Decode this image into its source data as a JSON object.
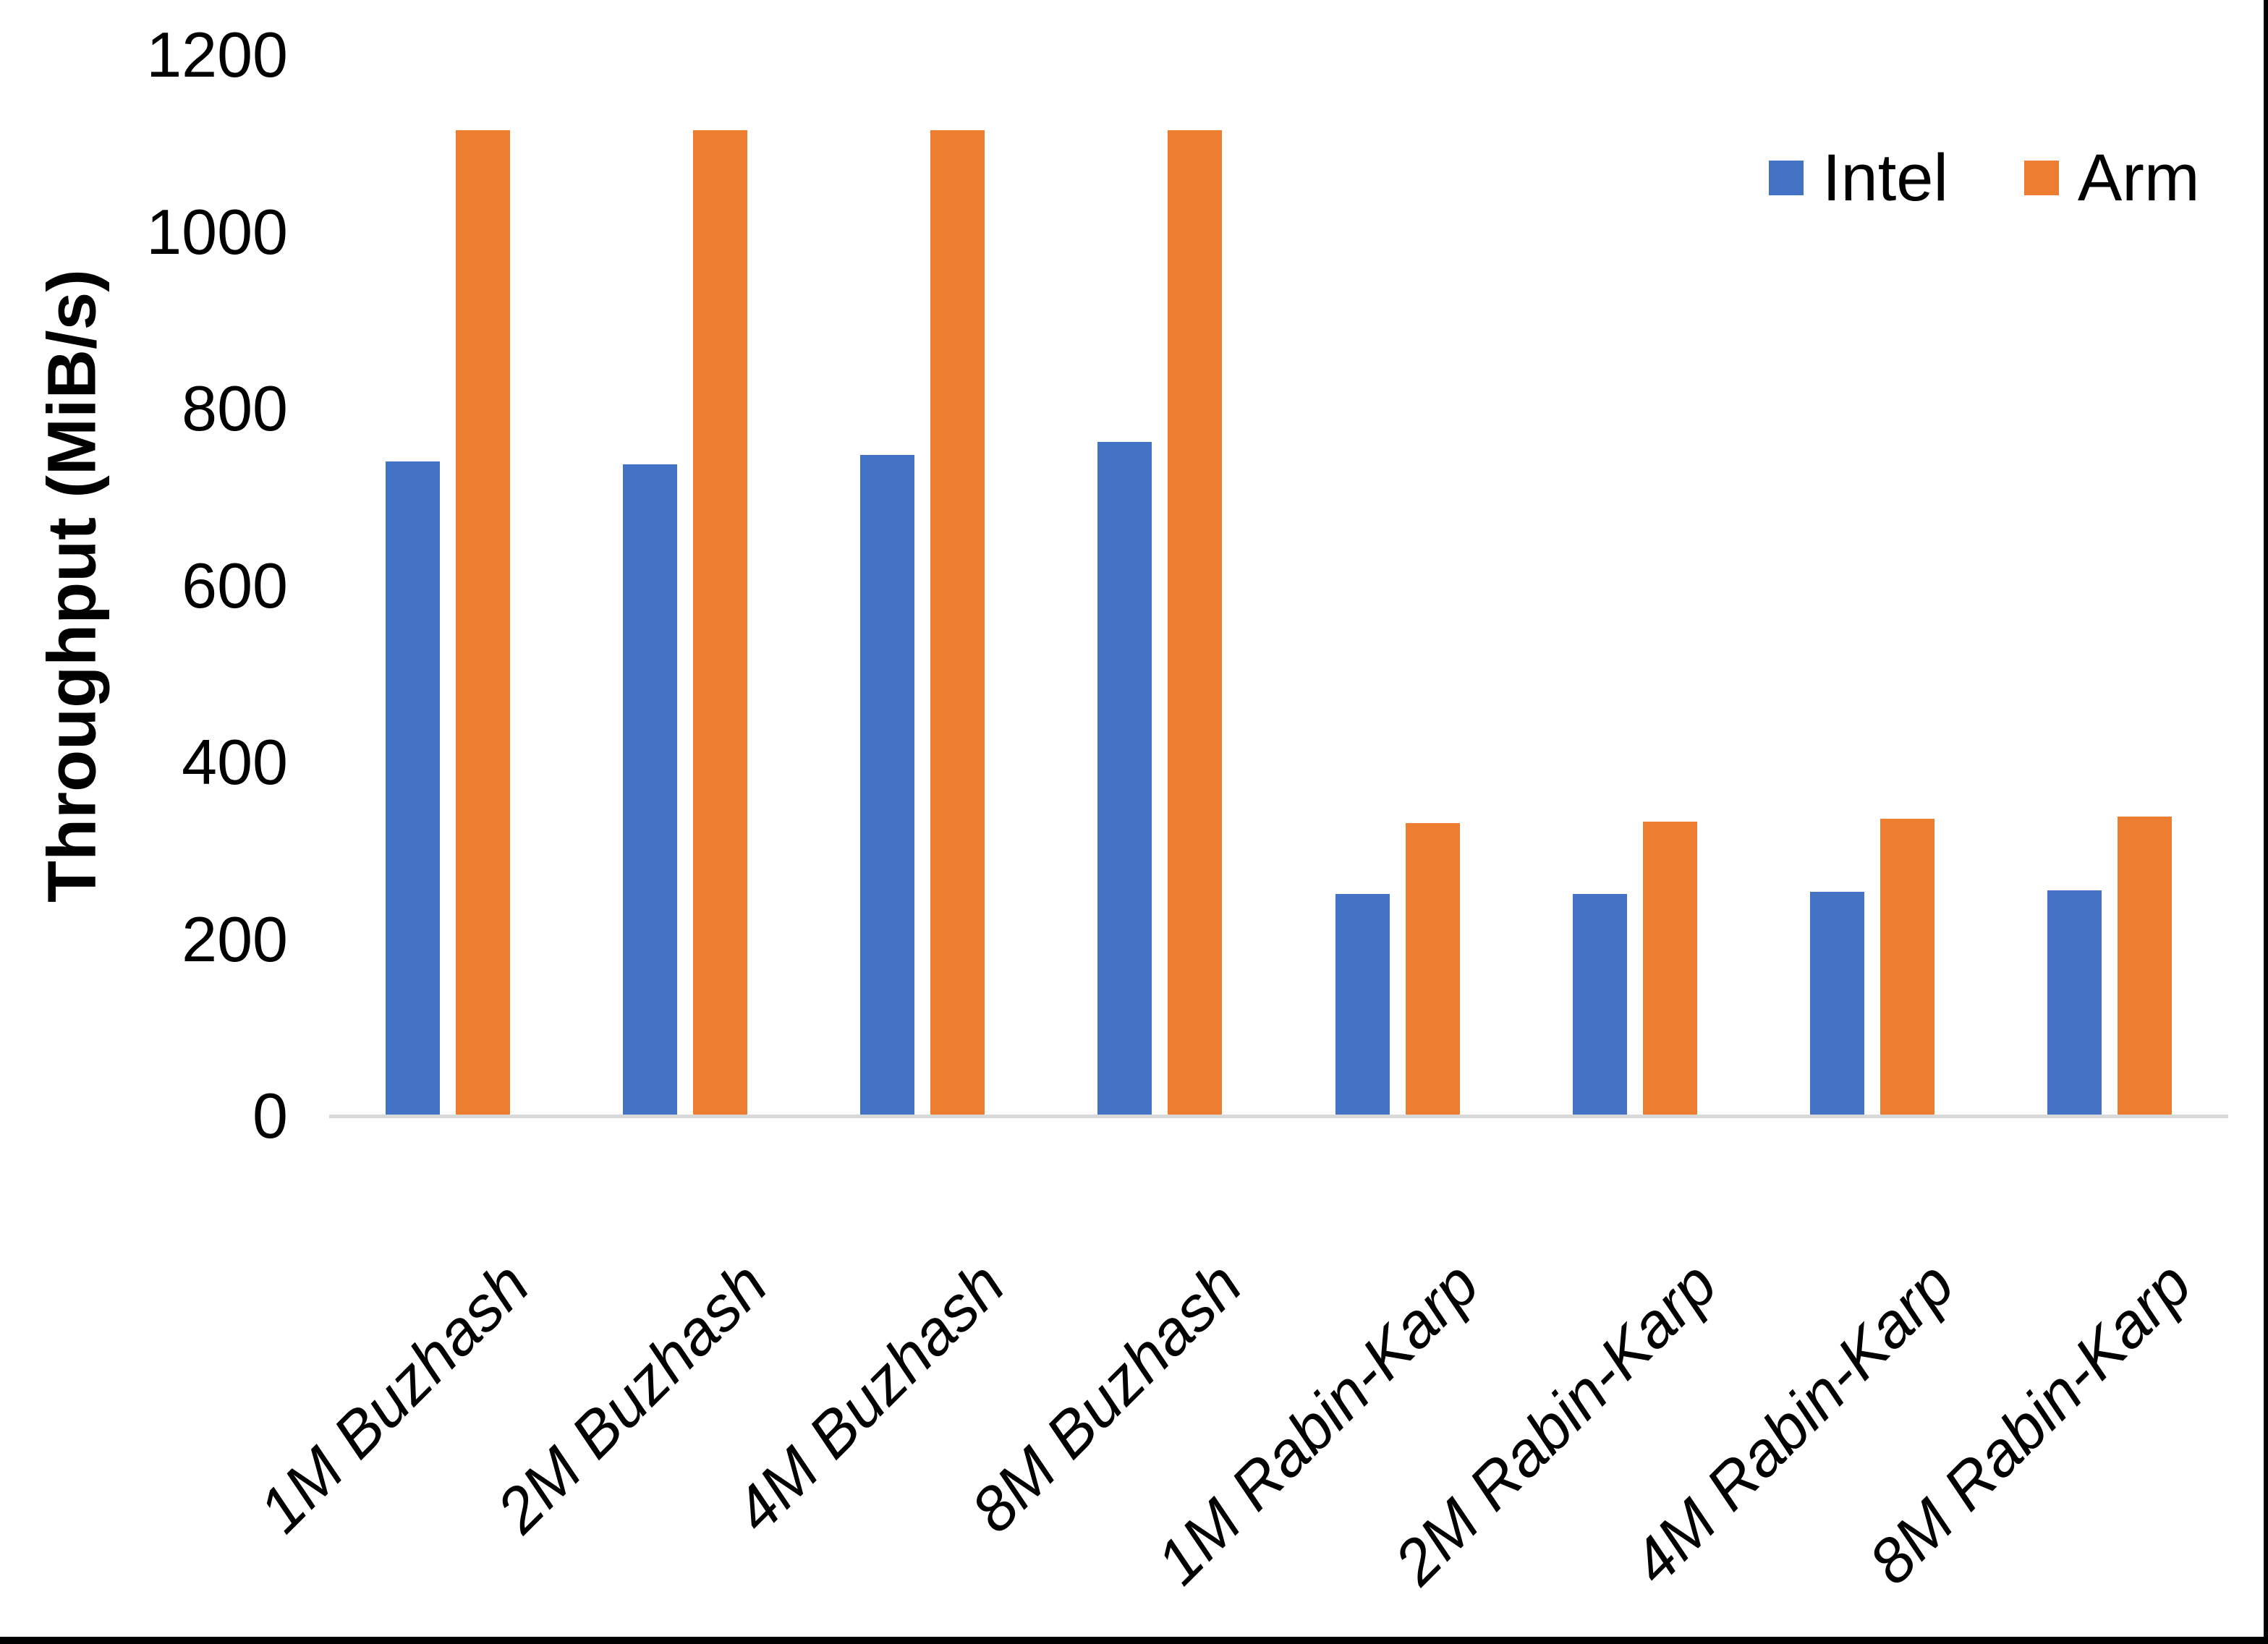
{
  "chart_data": {
    "type": "bar",
    "title": "",
    "ylabel": "Throughput (MiB/s)",
    "xlabel": "",
    "ylim": [
      0,
      1200
    ],
    "yticks": [
      0,
      200,
      400,
      600,
      800,
      1000,
      1200
    ],
    "grid": false,
    "legend_position": "top-right",
    "categories": [
      "1M Buzhash",
      "2M Buzhash",
      "4M Buzhash",
      "8M Buzhash",
      "1M Rabin-Karp",
      "2M Rabin-Karp",
      "4M Rabin-Karp",
      "8M Rabin-Karp"
    ],
    "series": [
      {
        "name": "Intel",
        "color": "#4472C4",
        "values": [
          740,
          737,
          748,
          762,
          251,
          251,
          254,
          255
        ]
      },
      {
        "name": "Arm",
        "color": "#ED7D31",
        "values": [
          1115,
          1115,
          1115,
          1115,
          331,
          333,
          336,
          339
        ]
      }
    ]
  },
  "colors": {
    "axis_line": "#D9D9D9",
    "text": "#000000",
    "frame": "#000000",
    "background": "#FFFFFF"
  }
}
